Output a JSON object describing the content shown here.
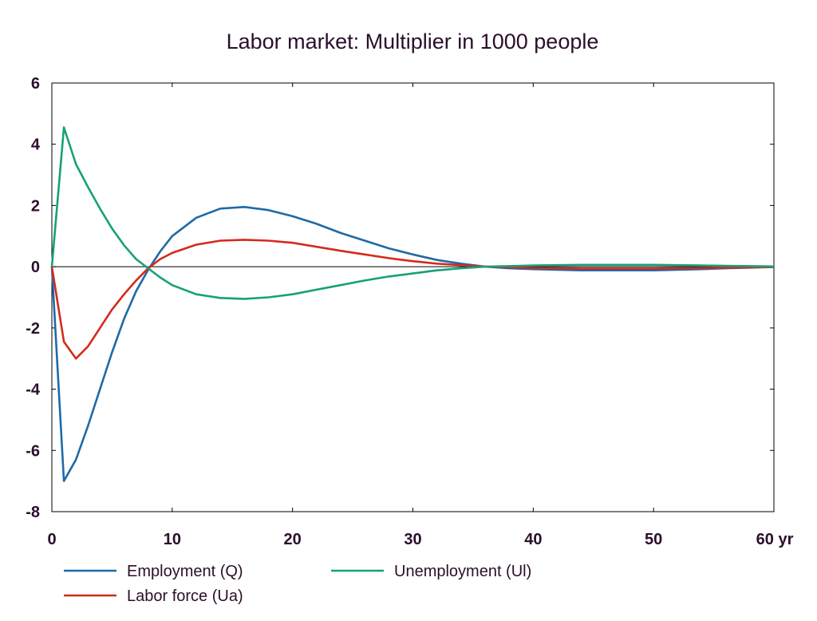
{
  "chart_data": {
    "type": "line",
    "title": "Labor market: Multiplier in 1000 people",
    "xlabel": "",
    "ylabel": "",
    "x_unit_label": "yr",
    "xlim": [
      0,
      60
    ],
    "ylim": [
      -8,
      6
    ],
    "x_ticks": [
      0,
      10,
      20,
      30,
      40,
      50,
      60
    ],
    "y_ticks": [
      6,
      4,
      2,
      0,
      -2,
      -4,
      -6,
      -8
    ],
    "x_tick_labels": [
      "0",
      "10",
      "20",
      "30",
      "40",
      "50",
      "60 yr"
    ],
    "y_tick_labels": [
      "6",
      "4",
      "2",
      "0",
      "-2",
      "-4",
      "-6",
      "-8"
    ],
    "grid": false,
    "legend_position": "bottom",
    "series": [
      {
        "name": "Employment (Q)",
        "color": "#1f6aa5",
        "x": [
          0,
          1,
          2,
          3,
          4,
          5,
          6,
          7,
          8,
          9,
          10,
          12,
          14,
          16,
          18,
          20,
          22,
          24,
          26,
          28,
          30,
          32,
          34,
          36,
          38,
          40,
          42,
          44,
          46,
          48,
          50,
          52,
          54,
          56,
          58,
          60
        ],
        "y": [
          0,
          -7.0,
          -6.3,
          -5.2,
          -4.0,
          -2.8,
          -1.7,
          -0.8,
          -0.1,
          0.5,
          1.0,
          1.6,
          1.9,
          1.95,
          1.85,
          1.65,
          1.4,
          1.1,
          0.85,
          0.6,
          0.4,
          0.22,
          0.1,
          0.0,
          -0.05,
          -0.08,
          -0.1,
          -0.12,
          -0.12,
          -0.12,
          -0.12,
          -0.1,
          -0.08,
          -0.05,
          -0.03,
          -0.01
        ]
      },
      {
        "name": "Labor force (Ua)",
        "color": "#d42a1e",
        "x": [
          0,
          1,
          2,
          3,
          4,
          5,
          6,
          7,
          8,
          9,
          10,
          12,
          14,
          16,
          18,
          20,
          22,
          24,
          26,
          28,
          30,
          32,
          34,
          36,
          38,
          40,
          42,
          44,
          46,
          48,
          50,
          52,
          54,
          56,
          58,
          60
        ],
        "y": [
          0,
          -2.45,
          -3.0,
          -2.6,
          -2.0,
          -1.4,
          -0.9,
          -0.45,
          -0.05,
          0.25,
          0.45,
          0.72,
          0.85,
          0.88,
          0.85,
          0.78,
          0.65,
          0.52,
          0.4,
          0.28,
          0.18,
          0.1,
          0.05,
          0.0,
          -0.02,
          -0.04,
          -0.05,
          -0.06,
          -0.06,
          -0.06,
          -0.06,
          -0.05,
          -0.04,
          -0.03,
          -0.02,
          -0.01
        ]
      },
      {
        "name": "Unemployment (Ul)",
        "color": "#17a07a",
        "x": [
          0,
          1,
          2,
          3,
          4,
          5,
          6,
          7,
          8,
          9,
          10,
          12,
          14,
          16,
          18,
          20,
          22,
          24,
          26,
          28,
          30,
          32,
          34,
          36,
          38,
          40,
          42,
          44,
          46,
          48,
          50,
          52,
          54,
          56,
          58,
          60
        ],
        "y": [
          0,
          4.55,
          3.35,
          2.6,
          1.9,
          1.25,
          0.7,
          0.25,
          -0.05,
          -0.35,
          -0.6,
          -0.9,
          -1.02,
          -1.05,
          -1.0,
          -0.9,
          -0.75,
          -0.6,
          -0.45,
          -0.32,
          -0.22,
          -0.12,
          -0.05,
          0.0,
          0.02,
          0.04,
          0.05,
          0.06,
          0.06,
          0.06,
          0.06,
          0.05,
          0.04,
          0.03,
          0.02,
          0.01
        ]
      }
    ]
  }
}
